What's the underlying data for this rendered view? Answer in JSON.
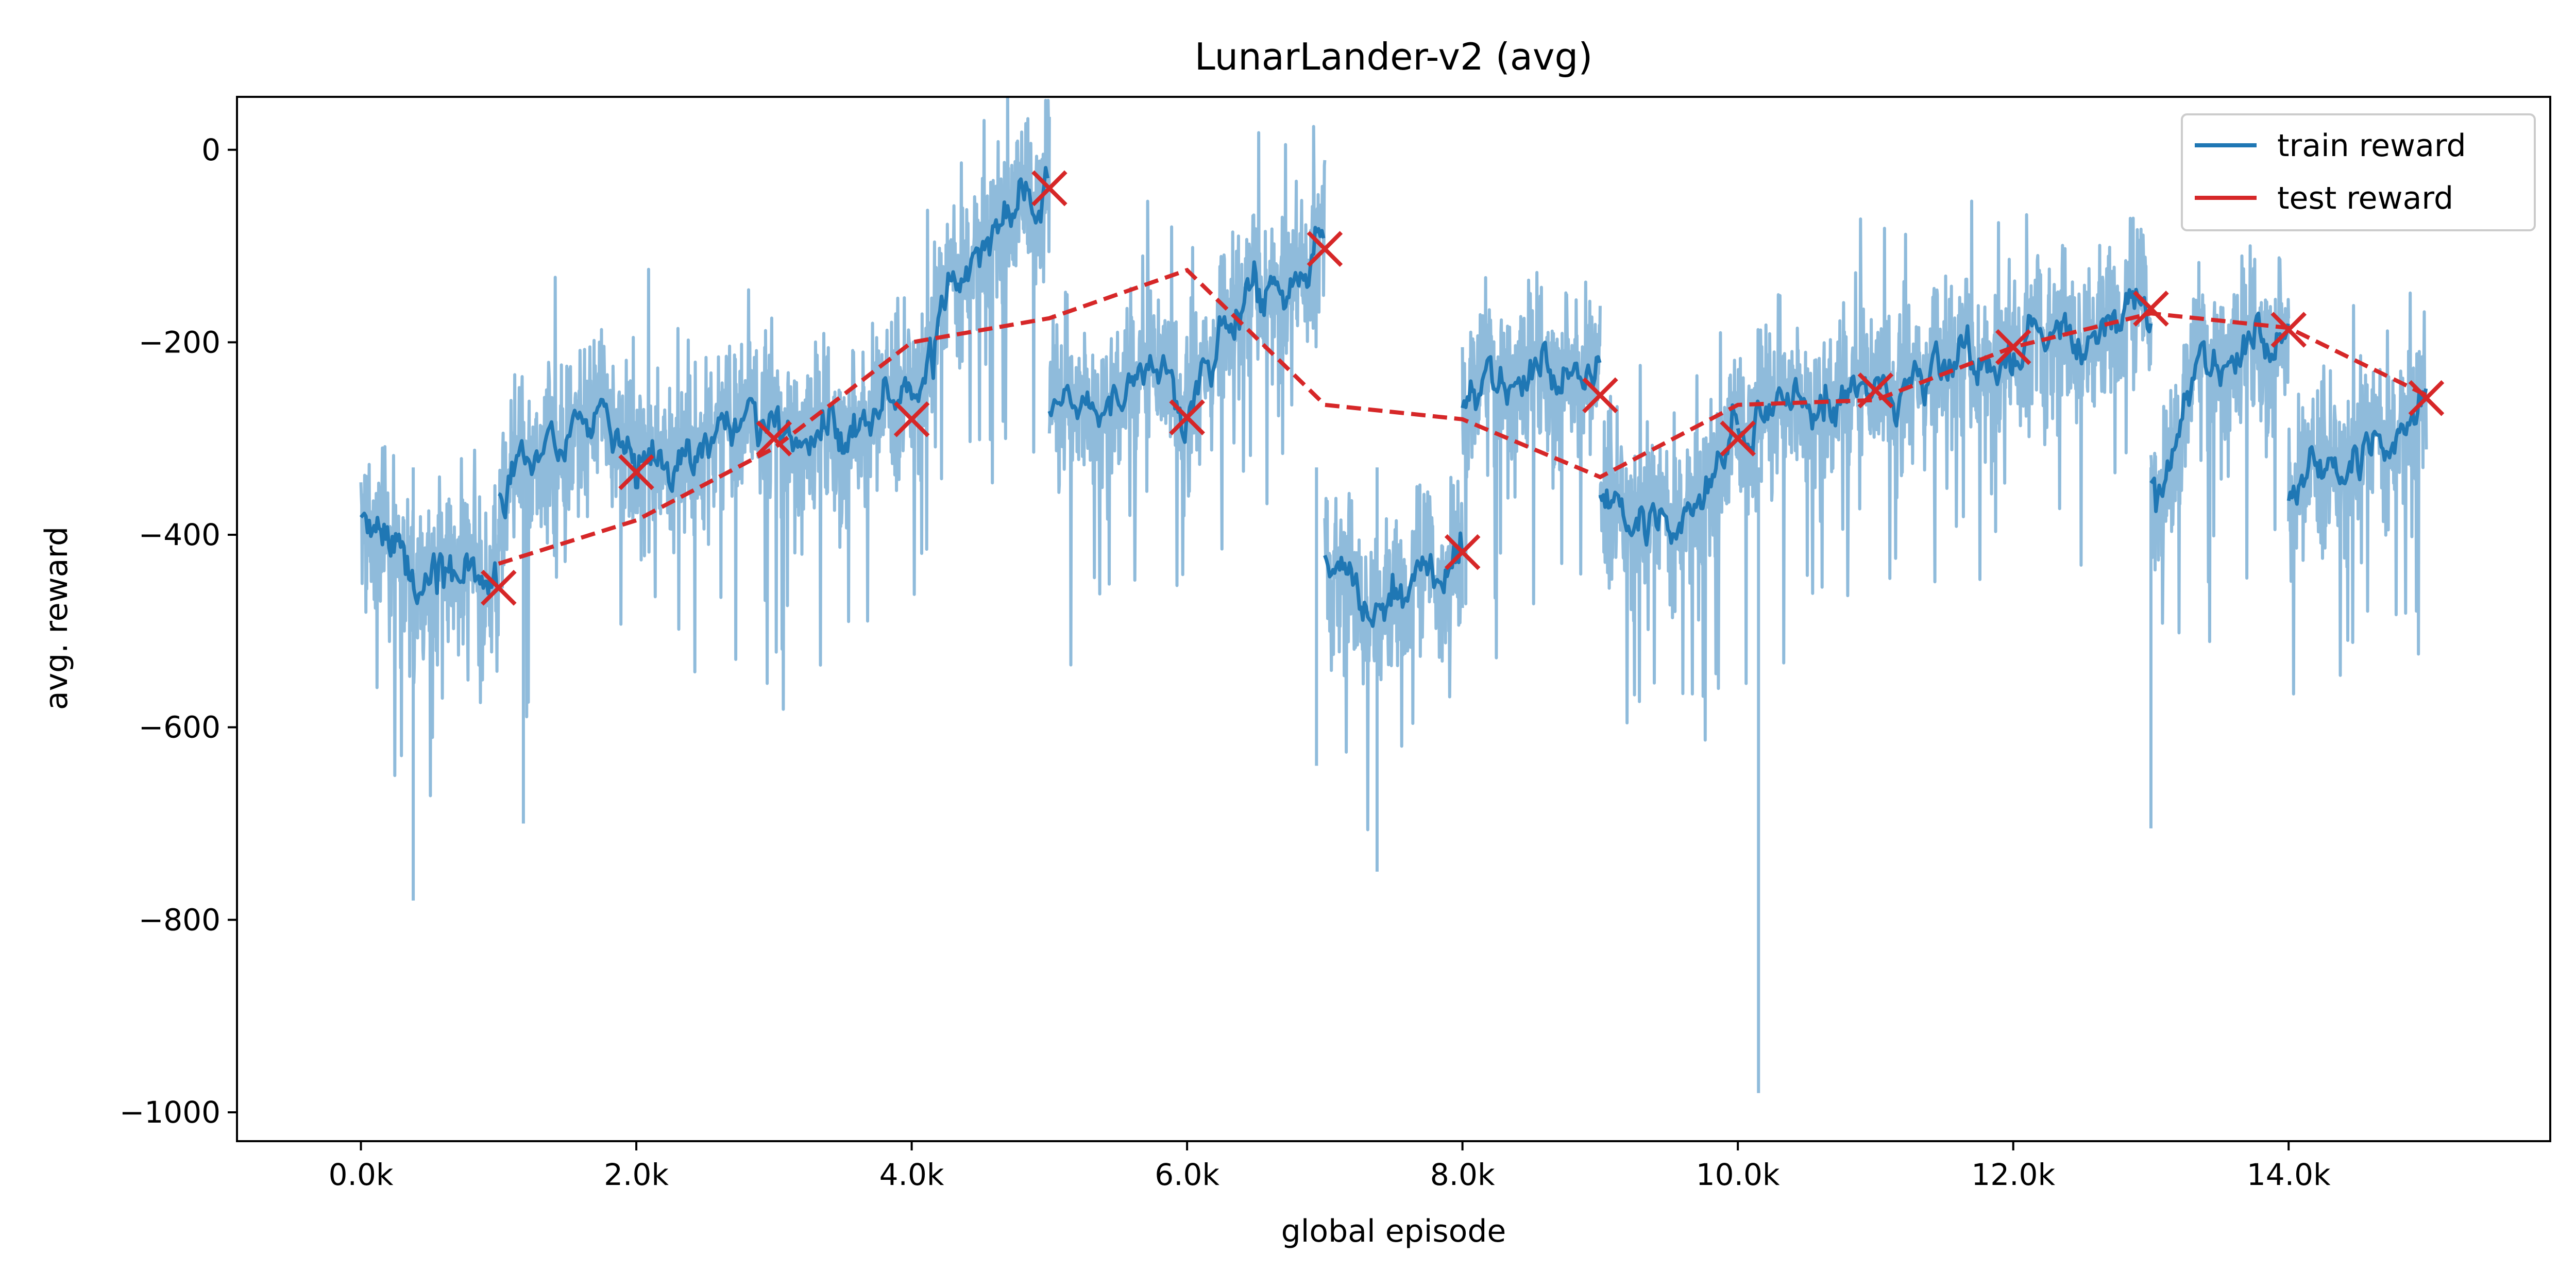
{
  "chart_data": {
    "type": "line",
    "title": "LunarLander-v2 (avg)",
    "xlabel": "global episode",
    "ylabel": "avg. reward",
    "xlim": [
      -900,
      15900
    ],
    "ylim": [
      -1030,
      55
    ],
    "x_ticks": [
      0,
      2000,
      4000,
      6000,
      8000,
      10000,
      12000,
      14000
    ],
    "x_tick_labels": [
      "0.0k",
      "2.0k",
      "4.0k",
      "6.0k",
      "8.0k",
      "10.0k",
      "12.0k",
      "14.0k"
    ],
    "y_ticks": [
      0,
      -200,
      -400,
      -600,
      -800,
      -1000
    ],
    "y_tick_labels": [
      "0",
      "−200",
      "−400",
      "−600",
      "−800",
      "−1000"
    ],
    "grid": false,
    "legend": {
      "placement": "top-right"
    },
    "series": [
      {
        "name": "train reward",
        "color": "#1f77b4",
        "raw_color": "#8fbbdb",
        "segments": [
          {
            "x": [
              0,
              1000
            ],
            "mean": [
              [
                0,
                -380
              ],
              [
                150,
                -400
              ],
              [
                300,
                -415
              ],
              [
                500,
                -430
              ],
              [
                700,
                -440
              ],
              [
                850,
                -445
              ],
              [
                1000,
                -450
              ]
            ]
          },
          {
            "x": [
              1000,
              5000
            ],
            "mean": [
              [
                1000,
                -360
              ],
              [
                1250,
                -330
              ],
              [
                1500,
                -300
              ],
              [
                1800,
                -285
              ],
              [
                2000,
                -330
              ],
              [
                2200,
                -310
              ],
              [
                2500,
                -290
              ],
              [
                2800,
                -285
              ],
              [
                3000,
                -300
              ],
              [
                3300,
                -305
              ],
              [
                3600,
                -290
              ],
              [
                3900,
                -270
              ],
              [
                4100,
                -230
              ],
              [
                4300,
                -140
              ],
              [
                4500,
                -110
              ],
              [
                4700,
                -80
              ],
              [
                5000,
                -50
              ]
            ]
          },
          {
            "x": [
              5000,
              7000
            ],
            "mean": [
              [
                5000,
                -265
              ],
              [
                5200,
                -285
              ],
              [
                5400,
                -270
              ],
              [
                5600,
                -250
              ],
              [
                5800,
                -240
              ],
              [
                6000,
                -275
              ],
              [
                6200,
                -215
              ],
              [
                6400,
                -175
              ],
              [
                6600,
                -140
              ],
              [
                6800,
                -130
              ],
              [
                7000,
                -105
              ]
            ]
          },
          {
            "x": [
              7000,
              8000
            ],
            "mean": [
              [
                7000,
                -420
              ],
              [
                7200,
                -460
              ],
              [
                7400,
                -475
              ],
              [
                7600,
                -465
              ],
              [
                7800,
                -440
              ],
              [
                8000,
                -425
              ]
            ]
          },
          {
            "x": [
              8000,
              9000
            ],
            "mean": [
              [
                8000,
                -265
              ],
              [
                8200,
                -250
              ],
              [
                8500,
                -240
              ],
              [
                8800,
                -230
              ],
              [
                9000,
                -250
              ]
            ]
          },
          {
            "x": [
              9000,
              10000
            ],
            "mean": [
              [
                9000,
                -360
              ],
              [
                9200,
                -380
              ],
              [
                9500,
                -395
              ],
              [
                9800,
                -360
              ],
              [
                10000,
                -300
              ]
            ]
          },
          {
            "x": [
              10000,
              13000
            ],
            "mean": [
              [
                10000,
                -300
              ],
              [
                10300,
                -280
              ],
              [
                10600,
                -270
              ],
              [
                11000,
                -260
              ],
              [
                11300,
                -245
              ],
              [
                11700,
                -225
              ],
              [
                12000,
                -210
              ],
              [
                12300,
                -200
              ],
              [
                12600,
                -190
              ],
              [
                13000,
                -170
              ]
            ]
          },
          {
            "x": [
              13000,
              14000
            ],
            "mean": [
              [
                13000,
                -340
              ],
              [
                13100,
                -360
              ],
              [
                13300,
                -240
              ],
              [
                13600,
                -220
              ],
              [
                14000,
                -190
              ]
            ]
          },
          {
            "x": [
              14000,
              15000
            ],
            "mean": [
              [
                14000,
                -360
              ],
              [
                14200,
                -345
              ],
              [
                14500,
                -320
              ],
              [
                14800,
                -300
              ],
              [
                15000,
                -265
              ]
            ]
          }
        ]
      },
      {
        "name": "test reward",
        "color": "#d62728",
        "x": [
          1000,
          2000,
          3000,
          4000,
          5000,
          6000,
          7000,
          8000,
          9000,
          10000,
          11000,
          12000,
          13000,
          14000,
          15000
        ],
        "y": [
          -430,
          -385,
          -310,
          -200,
          -175,
          -125,
          -265,
          -280,
          -340,
          -265,
          -260,
          -205,
          -170,
          -185,
          -255
        ]
      },
      {
        "name": "",
        "type": "scatter",
        "marker": "x",
        "color": "#d62728",
        "x": [
          1000,
          2000,
          3000,
          4000,
          5000,
          6000,
          7000,
          8000,
          9000,
          10000,
          11000,
          12000,
          13000,
          14000,
          15000
        ],
        "y": [
          -455,
          -335,
          -300,
          -280,
          -40,
          -278,
          -103,
          -418,
          -255,
          -300,
          -250,
          -205,
          -165,
          -187,
          -258
        ]
      }
    ]
  }
}
